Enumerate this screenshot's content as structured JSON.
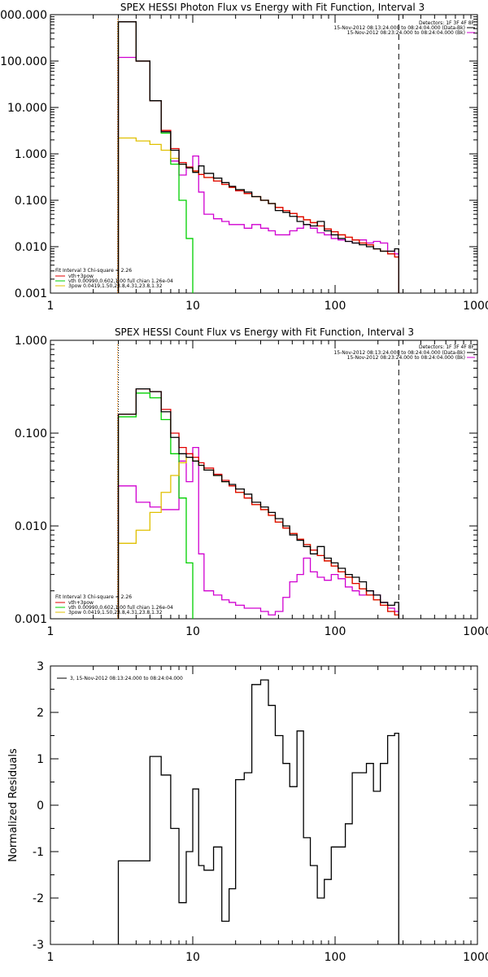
{
  "colors": {
    "black": "#000000",
    "red": "#e00000",
    "green": "#00d000",
    "yellow": "#e0c000",
    "magenta": "#d000d0",
    "orange": "#ff8c00"
  },
  "panels": {
    "photon": {
      "title": "SPEX HESSI Photon Flux vs Energy with Fit Function, Interval 3",
      "ytick_labels": [
        "0.001",
        "0.010",
        "0.100",
        "1.000",
        "10.000",
        "100.000",
        "000.000"
      ],
      "xtick_labels": [
        "1",
        "10",
        "100",
        "1000"
      ],
      "legend_right": [
        "Detectors: 1F 3F 4F 8F",
        "15-Nov-2012 08:13:24.000 to 08:24:04.000 (Data-Bk)",
        "15-Nov-2012 08:23:24.000 to 08:24:04.000 (Bk)"
      ],
      "legend_left": [
        "Fit Interval 3   Chi-square = 2.26",
        "vth+3pow",
        "vth 0.00990,0.602,1.00   full chian 1.26e-04",
        "3pow 0.0419,1.50,23.8,4.31,23.8,1.32"
      ]
    },
    "count": {
      "title": "SPEX HESSI Count Flux vs Energy with Fit Function, Interval 3",
      "ytick_labels": [
        "0.001",
        "0.010",
        "0.100",
        "1.000"
      ],
      "xtick_labels": [
        "1",
        "10",
        "100",
        "1000"
      ],
      "legend_right": [
        "Detectors: 1F 3F 4F 8F",
        "15-Nov-2012 08:13:24.000 to 08:24:04.000 (Data-Bk)",
        "15-Nov-2012 08:23:24.000 to 08:24:04.000 (Bk)"
      ],
      "legend_left": [
        "Fit Interval 3   Chi-square = 2.26",
        "vth+3pow",
        "vth 0.00990,0.602,1.00   full chian 1.26e-04",
        "3pow 0.0419,1.50,23.8,4.31,23.8,1.32"
      ]
    },
    "resid": {
      "ylabel": "Normalized Residuals",
      "ytick_labels": [
        "-3",
        "-2",
        "-1",
        "0",
        "1",
        "2",
        "3"
      ],
      "xtick_labels": [
        "1",
        "10",
        "100",
        "1000"
      ],
      "legend": "3, 15-Nov-2012 08:13:24.000 to 08:24:04.000"
    }
  },
  "chart_data": [
    {
      "type": "line",
      "title": "SPEX HESSI Photon Flux vs Energy with Fit Function, Interval 3",
      "x_scale": "log",
      "y_scale": "log",
      "xlim": [
        1,
        1000
      ],
      "ylim": [
        0.001,
        1000
      ],
      "vlines": [
        {
          "x": 3,
          "style": "dotted"
        },
        {
          "x": 280,
          "style": "dashed"
        }
      ],
      "series": [
        {
          "name": "Data-Bk",
          "color_key": "black",
          "x": [
            3,
            4,
            5,
            6,
            7,
            8,
            9,
            10,
            11,
            12,
            14,
            16,
            18,
            20,
            23,
            26,
            30,
            34,
            38,
            43,
            48,
            54,
            60,
            67,
            75,
            84,
            94,
            105,
            118,
            132,
            148,
            166,
            186,
            208,
            234,
            262,
            280
          ],
          "y": [
            700,
            100,
            14,
            3,
            1.2,
            0.6,
            0.5,
            0.4,
            0.55,
            0.38,
            0.3,
            0.24,
            0.2,
            0.17,
            0.15,
            0.12,
            0.1,
            0.085,
            0.06,
            0.055,
            0.045,
            0.035,
            0.03,
            0.028,
            0.035,
            0.022,
            0.018,
            0.015,
            0.013,
            0.012,
            0.011,
            0.01,
            0.009,
            0.008,
            0.008,
            0.009,
            0.009
          ]
        },
        {
          "name": "vth+3pow",
          "color_key": "red",
          "x": [
            3,
            4,
            5,
            6,
            7,
            8,
            9,
            10,
            11,
            12,
            14,
            16,
            18,
            20,
            23,
            26,
            30,
            34,
            38,
            43,
            48,
            54,
            60,
            67,
            75,
            84,
            94,
            105,
            118,
            132,
            148,
            166,
            186,
            208,
            234,
            262,
            280
          ],
          "y": [
            700,
            100,
            14,
            3.2,
            1.3,
            0.65,
            0.52,
            0.43,
            0.36,
            0.31,
            0.26,
            0.22,
            0.19,
            0.16,
            0.14,
            0.12,
            0.1,
            0.085,
            0.07,
            0.06,
            0.052,
            0.044,
            0.038,
            0.033,
            0.028,
            0.024,
            0.021,
            0.018,
            0.016,
            0.014,
            0.012,
            0.011,
            0.009,
            0.008,
            0.007,
            0.006,
            0.006
          ]
        },
        {
          "name": "vth",
          "color_key": "green",
          "x": [
            3,
            4,
            5,
            6,
            7,
            8,
            9,
            10
          ],
          "y": [
            700,
            100,
            14,
            2.8,
            0.6,
            0.1,
            0.015,
            0.002
          ]
        },
        {
          "name": "3pow",
          "color_key": "yellow",
          "x": [
            3,
            4,
            5,
            6,
            7,
            8,
            9,
            10,
            11,
            12,
            14,
            16,
            18,
            20,
            23,
            26,
            30,
            34,
            38,
            43,
            48,
            54,
            60,
            67,
            75,
            84,
            94,
            105,
            118,
            132,
            148,
            166,
            186,
            208,
            234,
            262,
            280
          ],
          "y": [
            2.2,
            1.9,
            1.6,
            1.2,
            0.8,
            0.6,
            0.5,
            0.42,
            0.36,
            0.31,
            0.26,
            0.22,
            0.19,
            0.16,
            0.14,
            0.12,
            0.1,
            0.085,
            0.07,
            0.06,
            0.052,
            0.044,
            0.038,
            0.033,
            0.028,
            0.024,
            0.021,
            0.018,
            0.016,
            0.014,
            0.012,
            0.011,
            0.009,
            0.008,
            0.007,
            0.006,
            0.006
          ]
        },
        {
          "name": "Bk",
          "color_key": "magenta",
          "x": [
            3,
            4,
            5,
            6,
            7,
            8,
            9,
            10,
            11,
            12,
            14,
            16,
            18,
            20,
            23,
            26,
            30,
            34,
            38,
            43,
            48,
            54,
            60,
            67,
            75,
            84,
            94,
            105,
            118,
            132,
            148,
            166,
            186,
            208,
            234,
            262,
            280
          ],
          "y": [
            120,
            100,
            14,
            3,
            0.7,
            0.35,
            0.5,
            0.9,
            0.15,
            0.05,
            0.04,
            0.035,
            0.03,
            0.03,
            0.025,
            0.03,
            0.025,
            0.022,
            0.018,
            0.018,
            0.022,
            0.025,
            0.03,
            0.025,
            0.02,
            0.018,
            0.015,
            0.014,
            0.013,
            0.012,
            0.014,
            0.012,
            0.013,
            0.012,
            0.008,
            0.007,
            0.006
          ]
        }
      ]
    },
    {
      "type": "line",
      "title": "SPEX HESSI Count Flux vs Energy with Fit Function, Interval 3",
      "x_scale": "log",
      "y_scale": "log",
      "xlim": [
        1,
        1000
      ],
      "ylim": [
        0.001,
        1
      ],
      "vlines": [
        {
          "x": 3,
          "style": "dotted"
        },
        {
          "x": 280,
          "style": "dashed"
        }
      ],
      "series": [
        {
          "name": "Data-Bk",
          "color_key": "black",
          "x": [
            3,
            4,
            5,
            6,
            7,
            8,
            9,
            10,
            11,
            12,
            14,
            16,
            18,
            20,
            23,
            26,
            30,
            34,
            38,
            43,
            48,
            54,
            60,
            67,
            75,
            84,
            94,
            105,
            118,
            132,
            148,
            166,
            186,
            208,
            234,
            262,
            280
          ],
          "y": [
            0.16,
            0.3,
            0.28,
            0.17,
            0.09,
            0.06,
            0.055,
            0.05,
            0.045,
            0.04,
            0.035,
            0.03,
            0.028,
            0.025,
            0.022,
            0.018,
            0.016,
            0.014,
            0.012,
            0.01,
            0.008,
            0.007,
            0.006,
            0.005,
            0.006,
            0.0045,
            0.004,
            0.0035,
            0.003,
            0.0028,
            0.0025,
            0.002,
            0.0018,
            0.0015,
            0.0014,
            0.0015,
            0.0015
          ]
        },
        {
          "name": "vth+3pow",
          "color_key": "red",
          "x": [
            3,
            4,
            5,
            6,
            7,
            8,
            9,
            10,
            11,
            12,
            14,
            16,
            18,
            20,
            23,
            26,
            30,
            34,
            38,
            43,
            48,
            54,
            60,
            67,
            75,
            84,
            94,
            105,
            118,
            132,
            148,
            166,
            186,
            208,
            234,
            262,
            280
          ],
          "y": [
            0.16,
            0.3,
            0.28,
            0.18,
            0.1,
            0.07,
            0.06,
            0.055,
            0.048,
            0.042,
            0.036,
            0.031,
            0.027,
            0.023,
            0.02,
            0.017,
            0.015,
            0.013,
            0.011,
            0.0095,
            0.0083,
            0.0072,
            0.0063,
            0.0055,
            0.0048,
            0.0042,
            0.0037,
            0.0032,
            0.0028,
            0.0024,
            0.0021,
            0.0018,
            0.0016,
            0.0014,
            0.0012,
            0.0011,
            0.0011
          ]
        },
        {
          "name": "vth",
          "color_key": "green",
          "x": [
            3,
            4,
            5,
            6,
            7,
            8,
            9,
            10
          ],
          "y": [
            0.15,
            0.27,
            0.24,
            0.14,
            0.06,
            0.02,
            0.004,
            0.001
          ]
        },
        {
          "name": "3pow",
          "color_key": "yellow",
          "x": [
            3,
            4,
            5,
            6,
            7,
            8,
            9,
            10,
            11,
            12,
            14,
            16,
            18,
            20,
            23,
            26,
            30,
            34,
            38,
            43,
            48,
            54,
            60,
            67,
            75,
            84,
            94,
            105,
            118,
            132,
            148,
            166,
            186,
            208,
            234,
            262,
            280
          ],
          "y": [
            0.0065,
            0.009,
            0.014,
            0.023,
            0.035,
            0.048,
            0.055,
            0.05,
            0.045,
            0.04,
            0.035,
            0.03,
            0.027,
            0.023,
            0.02,
            0.017,
            0.015,
            0.013,
            0.011,
            0.0095,
            0.0083,
            0.0072,
            0.0063,
            0.0055,
            0.0048,
            0.0042,
            0.0037,
            0.0032,
            0.0028,
            0.0024,
            0.0021,
            0.0018,
            0.0016,
            0.0014,
            0.0012,
            0.0011,
            0.001
          ]
        },
        {
          "name": "Bk",
          "color_key": "magenta",
          "x": [
            3,
            4,
            5,
            6,
            7,
            8,
            9,
            10,
            11,
            12,
            14,
            16,
            18,
            20,
            23,
            26,
            30,
            34,
            38,
            43,
            48,
            54,
            60,
            67,
            75,
            84,
            94,
            105,
            118,
            132,
            148,
            166,
            186,
            208,
            234,
            262,
            280
          ],
          "y": [
            0.027,
            0.018,
            0.016,
            0.015,
            0.015,
            0.05,
            0.03,
            0.07,
            0.005,
            0.002,
            0.0018,
            0.0016,
            0.0015,
            0.0014,
            0.0013,
            0.0013,
            0.0012,
            0.0011,
            0.0012,
            0.0017,
            0.0025,
            0.003,
            0.0045,
            0.0032,
            0.0028,
            0.0026,
            0.003,
            0.0027,
            0.0022,
            0.002,
            0.0018,
            0.002,
            0.0018,
            0.0015,
            0.0013,
            0.0012,
            0.0012
          ]
        }
      ]
    },
    {
      "type": "line",
      "title": "",
      "ylabel": "Normalized Residuals",
      "x_scale": "log",
      "y_scale": "linear",
      "xlim": [
        1,
        1000
      ],
      "ylim": [
        -3,
        3
      ],
      "series": [
        {
          "name": "3, 15-Nov-2012 08:13:24.000 to 08:24:04.000",
          "color_key": "black",
          "x": [
            3,
            4,
            5,
            6,
            7,
            8,
            9,
            10,
            11,
            12,
            14,
            16,
            18,
            20,
            23,
            26,
            30,
            34,
            38,
            43,
            48,
            54,
            60,
            67,
            75,
            84,
            94,
            105,
            118,
            132,
            148,
            166,
            186,
            208,
            234,
            262,
            280
          ],
          "y": [
            -1.2,
            -1.2,
            1.05,
            0.65,
            -0.5,
            -2.1,
            -1.0,
            0.35,
            -1.3,
            -1.4,
            -0.9,
            -2.5,
            -1.8,
            0.55,
            0.7,
            2.6,
            2.7,
            2.15,
            1.5,
            0.9,
            0.4,
            1.6,
            -0.7,
            -1.3,
            -2.0,
            -1.6,
            -0.9,
            -0.9,
            -0.4,
            0.7,
            0.7,
            0.9,
            0.3,
            0.9,
            1.5,
            1.55,
            -3.0
          ]
        }
      ]
    }
  ]
}
